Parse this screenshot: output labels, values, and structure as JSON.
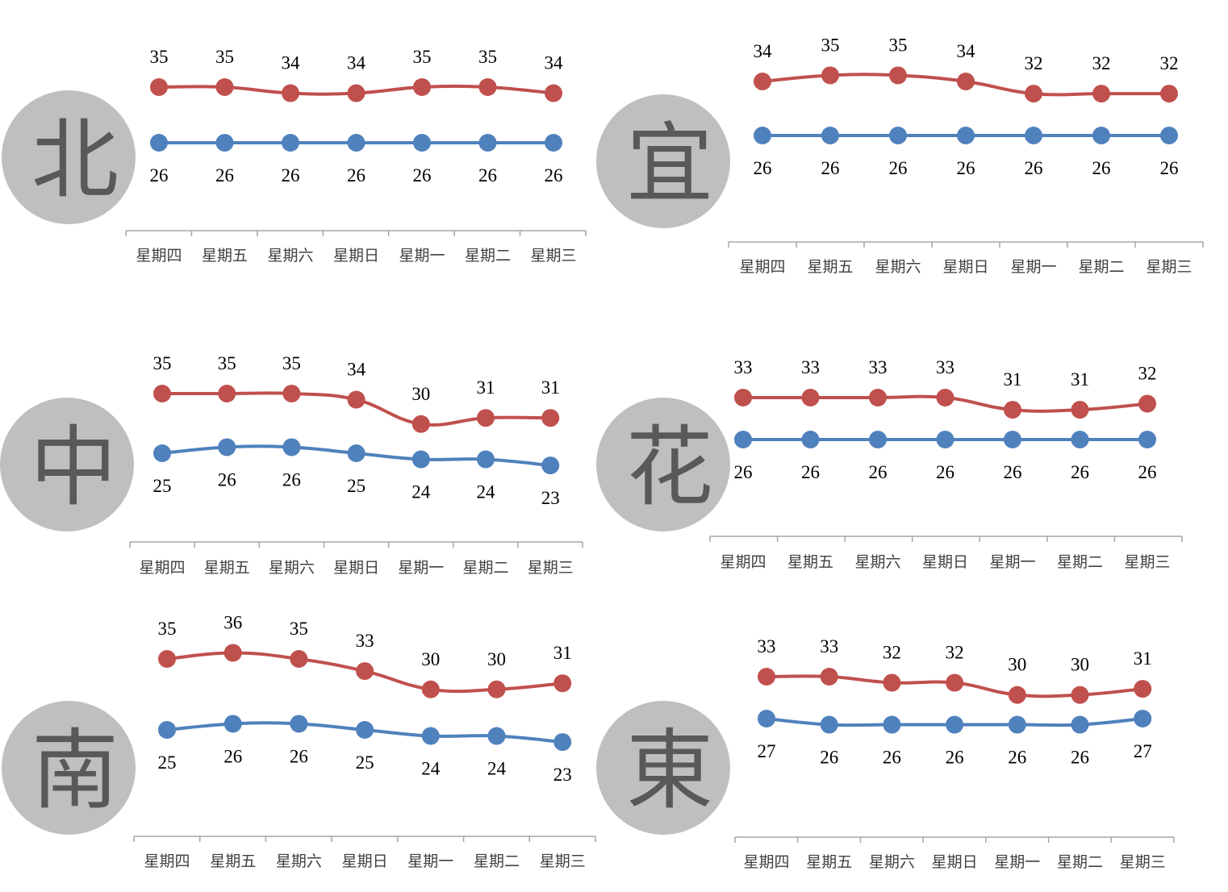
{
  "colors": {
    "high": "#c0504d",
    "low": "#4f81bd",
    "badge": "#bfbfbf",
    "badge_text": "#595959",
    "axis": "#a6a6a6"
  },
  "chart_data": [
    {
      "type": "line",
      "region": "北",
      "categories": [
        "星期四",
        "星期五",
        "星期六",
        "星期日",
        "星期一",
        "星期二",
        "星期三"
      ],
      "series": [
        {
          "key": "high",
          "values": [
            35,
            35,
            34,
            34,
            35,
            35,
            34
          ]
        },
        {
          "key": "low",
          "values": [
            26,
            26,
            26,
            26,
            26,
            26,
            26
          ]
        }
      ]
    },
    {
      "type": "line",
      "region": "宜",
      "categories": [
        "星期四",
        "星期五",
        "星期六",
        "星期日",
        "星期一",
        "星期二",
        "星期三"
      ],
      "series": [
        {
          "key": "high",
          "values": [
            34,
            35,
            35,
            34,
            32,
            32,
            32
          ]
        },
        {
          "key": "low",
          "values": [
            26,
            26,
            26,
            26,
            26,
            26,
            26
          ]
        }
      ]
    },
    {
      "type": "line",
      "region": "中",
      "categories": [
        "星期四",
        "星期五",
        "星期六",
        "星期日",
        "星期一",
        "星期二",
        "星期三"
      ],
      "series": [
        {
          "key": "high",
          "values": [
            35,
            35,
            35,
            34,
            30,
            31,
            31
          ]
        },
        {
          "key": "low",
          "values": [
            25,
            26,
            26,
            25,
            24,
            24,
            23
          ]
        }
      ]
    },
    {
      "type": "line",
      "region": "花",
      "categories": [
        "星期四",
        "星期五",
        "星期六",
        "星期日",
        "星期一",
        "星期二",
        "星期三"
      ],
      "series": [
        {
          "key": "high",
          "values": [
            33,
            33,
            33,
            33,
            31,
            31,
            32
          ]
        },
        {
          "key": "low",
          "values": [
            26,
            26,
            26,
            26,
            26,
            26,
            26
          ]
        }
      ]
    },
    {
      "type": "line",
      "region": "南",
      "categories": [
        "星期四",
        "星期五",
        "星期六",
        "星期日",
        "星期一",
        "星期二",
        "星期三"
      ],
      "series": [
        {
          "key": "high",
          "values": [
            35,
            36,
            35,
            33,
            30,
            30,
            31
          ]
        },
        {
          "key": "low",
          "values": [
            25,
            26,
            26,
            25,
            24,
            24,
            23
          ]
        }
      ]
    },
    {
      "type": "line",
      "region": "東",
      "categories": [
        "星期四",
        "星期五",
        "星期六",
        "星期日",
        "星期一",
        "星期二",
        "星期三"
      ],
      "series": [
        {
          "key": "high",
          "values": [
            33,
            33,
            32,
            32,
            30,
            30,
            31
          ]
        },
        {
          "key": "low",
          "values": [
            27,
            26,
            26,
            26,
            26,
            26,
            27
          ]
        }
      ]
    }
  ]
}
